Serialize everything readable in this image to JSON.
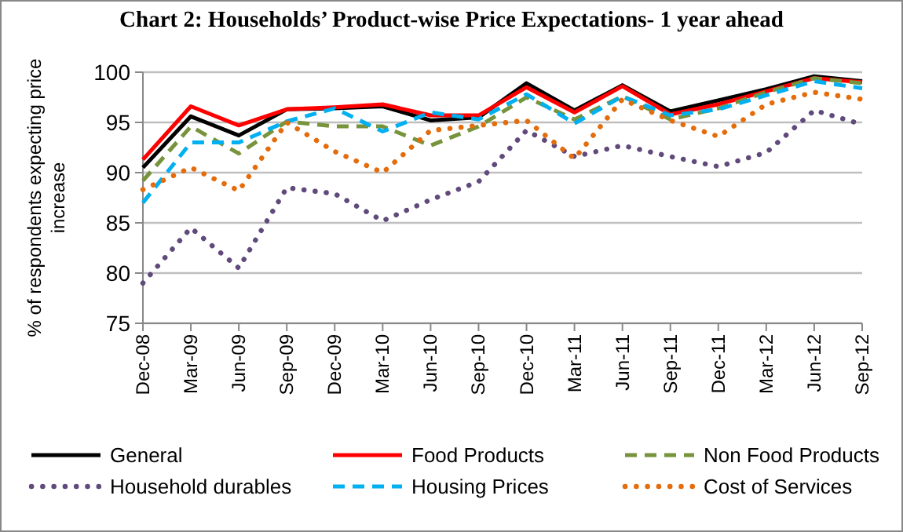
{
  "chart_data": {
    "type": "line",
    "title": "Chart 2: Households’ Product-wise Price Expectations- 1 year ahead",
    "ylabel": "% of respondents expecting price increase",
    "categories": [
      "Dec-08",
      "Mar-09",
      "Jun-09",
      "Sep-09",
      "Dec-09",
      "Mar-10",
      "Jun-10",
      "Sep-10",
      "Dec-10",
      "Mar-11",
      "Jun-11",
      "Sep-11",
      "Dec-11",
      "Mar-12",
      "Jun-12",
      "Sep-12"
    ],
    "series": [
      {
        "name": "General",
        "color": "#000000",
        "line_style": "solid",
        "values": [
          90.5,
          95.6,
          93.7,
          96.3,
          96.4,
          96.6,
          95.2,
          95.5,
          98.9,
          96.2,
          98.7,
          96.1,
          97.2,
          98.3,
          99.6,
          99.1
        ]
      },
      {
        "name": "Food Products",
        "color": "#ff0000",
        "line_style": "solid",
        "values": [
          91.3,
          96.6,
          94.7,
          96.3,
          96.5,
          96.8,
          95.7,
          95.7,
          98.5,
          96.0,
          98.6,
          95.8,
          96.8,
          98.1,
          99.4,
          99.0
        ]
      },
      {
        "name": "Non Food Products",
        "color": "#77933c",
        "line_style": "dashed",
        "values": [
          89.2,
          94.6,
          91.9,
          95.1,
          94.6,
          94.6,
          92.7,
          94.6,
          97.5,
          95.3,
          97.6,
          95.3,
          96.4,
          98.0,
          99.4,
          98.9
        ]
      },
      {
        "name": "Household durables",
        "color": "#604a7b",
        "line_style": "dotted",
        "values": [
          79.0,
          84.5,
          80.5,
          88.5,
          87.9,
          85.2,
          87.3,
          89.1,
          94.2,
          91.6,
          92.7,
          91.6,
          90.6,
          92.0,
          96.2,
          94.8
        ]
      },
      {
        "name": "Housing Prices",
        "color": "#00b0f0",
        "line_style": "dashed",
        "values": [
          87.0,
          93.0,
          93.0,
          95.1,
          96.4,
          94.1,
          96.0,
          95.3,
          97.8,
          94.9,
          97.6,
          95.7,
          96.3,
          97.7,
          99.1,
          98.4
        ]
      },
      {
        "name": "Cost of Services",
        "color": "#e46c0a",
        "line_style": "dotted",
        "values": [
          88.3,
          90.5,
          88.2,
          95.0,
          92.1,
          90.0,
          94.2,
          94.7,
          95.2,
          91.4,
          97.3,
          95.2,
          93.6,
          96.8,
          98.0,
          97.3
        ]
      }
    ],
    "ylim": [
      75,
      100
    ],
    "yticks": [
      75,
      80,
      85,
      90,
      95,
      100
    ],
    "grid": "y",
    "legend": "bottom",
    "marker": "none"
  }
}
